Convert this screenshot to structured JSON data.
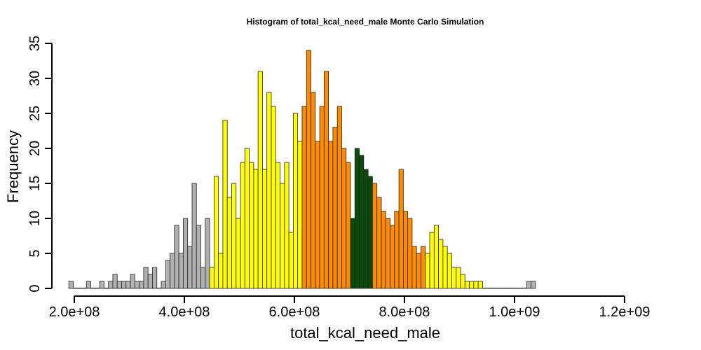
{
  "chart_data": {
    "type": "bar",
    "title": "Histogram of  total_kcal_need_male  Monte Carlo Simulation",
    "xlabel": "total_kcal_need_male",
    "ylabel": "Frequency",
    "xlim": [
      200000000,
      1260000000
    ],
    "ylim": [
      0,
      35
    ],
    "bin_start": 190000000,
    "bin_width": 8000000,
    "x_ticks": [
      200000000,
      400000000,
      600000000,
      800000000,
      1000000000,
      1200000000
    ],
    "x_tick_labels": [
      "2.0e+08",
      "4.0e+08",
      "6.0e+08",
      "8.0e+08",
      "1.0e+09",
      "1.2e+09"
    ],
    "y_ticks": [
      0,
      5,
      10,
      15,
      20,
      25,
      30,
      35
    ],
    "y_tick_labels": [
      "0",
      "5",
      "10",
      "15",
      "20",
      "25",
      "30",
      "35"
    ],
    "grid": false,
    "legend": "none",
    "values": [
      1,
      0,
      0,
      0,
      1,
      0,
      0,
      1,
      0,
      1,
      2,
      1,
      1,
      1,
      2,
      1,
      1,
      3,
      2,
      3,
      0,
      1,
      4,
      5,
      9,
      5,
      10,
      6,
      15,
      9,
      3,
      10,
      3,
      16,
      5,
      24,
      13,
      15,
      10,
      18,
      20,
      18,
      17,
      31,
      17,
      28,
      26,
      18,
      15,
      18,
      8,
      25,
      21,
      26,
      34,
      28,
      21,
      26,
      31,
      21,
      23,
      26,
      20,
      18,
      10,
      20,
      19,
      17,
      16,
      15,
      13,
      11,
      10,
      9,
      11,
      17,
      11,
      10,
      6,
      5,
      6,
      5,
      8,
      9,
      7,
      6,
      5,
      3,
      3,
      2,
      1,
      1,
      1,
      1,
      0,
      0,
      0,
      0,
      0,
      0,
      0,
      0,
      0,
      0,
      1,
      1
    ],
    "colors": {
      "outer": "#b0b0b0",
      "mid": "#ffff00",
      "inner": "#ff8c00",
      "center": "#0a4a0a"
    },
    "color_bands": [
      {
        "min": 190000000,
        "max": 446000000,
        "color": "#b0b0b0"
      },
      {
        "min": 446000000,
        "max": 614000000,
        "color": "#ffff00"
      },
      {
        "min": 614000000,
        "max": 702000000,
        "color": "#ff8c00"
      },
      {
        "min": 702000000,
        "max": 742000000,
        "color": "#0a4a0a"
      },
      {
        "min": 742000000,
        "max": 838000000,
        "color": "#ff8c00"
      },
      {
        "min": 838000000,
        "max": 990000000,
        "color": "#ffff00"
      },
      {
        "min": 990000000,
        "max": 1040000000,
        "color": "#b0b0b0"
      }
    ]
  }
}
